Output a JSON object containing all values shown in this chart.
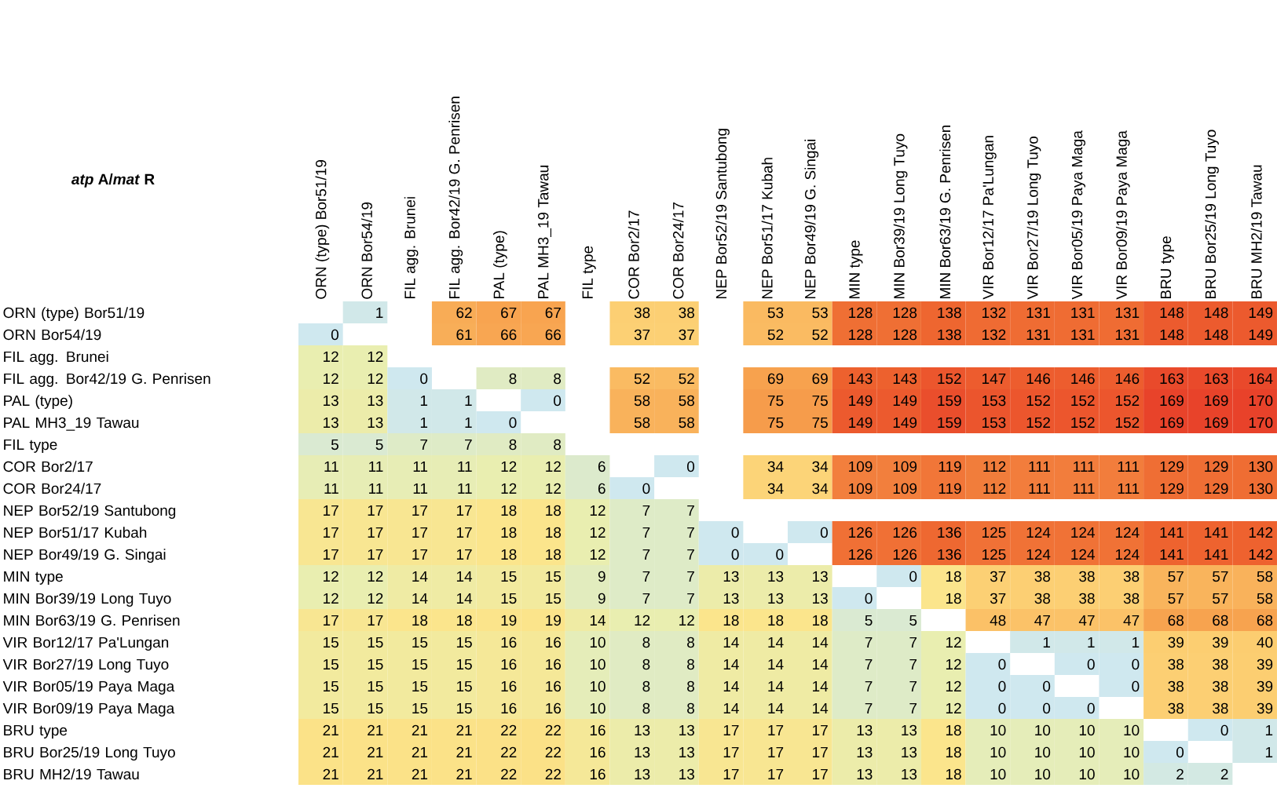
{
  "chart_data": {
    "type": "heatmap",
    "title": "*atp* A/*mat* R",
    "data_labels": true,
    "categories": [
      "ORN (type) Bor51/19",
      "ORN Bor54/19",
      "FIL agg. Brunei",
      "FIL agg. Bor42/19 G. Penrisen",
      "PAL (type)",
      "PAL MH3_19 Tawau",
      "FIL type",
      "COR Bor2/17",
      "COR Bor24/17",
      "NEP Bor52/19 Santubong",
      "NEP Bor51/17 Kubah",
      "NEP Bor49/19 G. Singai",
      "MIN type",
      "MIN Bor39/19 Long Tuyo",
      "MIN Bor63/19 G. Penrisen",
      "VIR Bor12/17 Pa'Lungan",
      "VIR Bor27/19 Long Tuyo",
      "VIR Bor05/19 Paya Maga",
      "VIR Bor09/19 Paya Maga",
      "BRU type",
      "BRU Bor25/19 Long Tuyo",
      "BRU MH2/19 Tawau"
    ],
    "y_categories": [
      "ORN (type) Bor51/19",
      "ORN Bor54/19",
      "FIL agg. Brunei",
      "FIL agg. Bor42/19 G. Penrisen",
      "PAL (type)",
      "PAL MH3_19 Tawau",
      "FIL type",
      "COR Bor2/17",
      "COR Bor24/17",
      "NEP Bor52/19 Santubong",
      "NEP Bor51/17 Kubah",
      "NEP Bor49/19 G. Singai",
      "MIN type",
      "MIN Bor39/19 Long Tuyo",
      "MIN Bor63/19 G. Penrisen",
      "VIR Bor12/17 Pa'Lungan",
      "VIR Bor27/19 Long Tuyo",
      "VIR Bor05/19 Paya Maga",
      "VIR Bor09/19 Paya Maga",
      "BRU type",
      "BRU Bor25/19 Long Tuyo",
      "BRU MH2/19 Tawau"
    ],
    "cells": [
      [
        null,
        1,
        null,
        62,
        67,
        67,
        null,
        38,
        38,
        null,
        53,
        53,
        128,
        128,
        138,
        132,
        131,
        131,
        131,
        148,
        148,
        149
      ],
      [
        0,
        null,
        null,
        61,
        66,
        66,
        null,
        37,
        37,
        null,
        52,
        52,
        128,
        128,
        138,
        132,
        131,
        131,
        131,
        148,
        148,
        149
      ],
      [
        12,
        12,
        null,
        null,
        null,
        null,
        null,
        null,
        null,
        null,
        null,
        null,
        null,
        null,
        null,
        null,
        null,
        null,
        null,
        null,
        null,
        null
      ],
      [
        12,
        12,
        0,
        null,
        8,
        8,
        null,
        52,
        52,
        null,
        69,
        69,
        143,
        143,
        152,
        147,
        146,
        146,
        146,
        163,
        163,
        164
      ],
      [
        13,
        13,
        1,
        1,
        null,
        0,
        null,
        58,
        58,
        null,
        75,
        75,
        149,
        149,
        159,
        153,
        152,
        152,
        152,
        169,
        169,
        170
      ],
      [
        13,
        13,
        1,
        1,
        0,
        null,
        null,
        58,
        58,
        null,
        75,
        75,
        149,
        149,
        159,
        153,
        152,
        152,
        152,
        169,
        169,
        170
      ],
      [
        5,
        5,
        7,
        7,
        8,
        8,
        null,
        null,
        null,
        null,
        null,
        null,
        null,
        null,
        null,
        null,
        null,
        null,
        null,
        null,
        null,
        null
      ],
      [
        11,
        11,
        11,
        11,
        12,
        12,
        6,
        null,
        0,
        null,
        34,
        34,
        109,
        109,
        119,
        112,
        111,
        111,
        111,
        129,
        129,
        130
      ],
      [
        11,
        11,
        11,
        11,
        12,
        12,
        6,
        0,
        null,
        null,
        34,
        34,
        109,
        109,
        119,
        112,
        111,
        111,
        111,
        129,
        129,
        130
      ],
      [
        17,
        17,
        17,
        17,
        18,
        18,
        12,
        7,
        7,
        null,
        null,
        null,
        null,
        null,
        null,
        null,
        null,
        null,
        null,
        null,
        null,
        null
      ],
      [
        17,
        17,
        17,
        17,
        18,
        18,
        12,
        7,
        7,
        0,
        null,
        0,
        126,
        126,
        136,
        125,
        124,
        124,
        124,
        141,
        141,
        142
      ],
      [
        17,
        17,
        17,
        17,
        18,
        18,
        12,
        7,
        7,
        0,
        0,
        null,
        126,
        126,
        136,
        125,
        124,
        124,
        124,
        141,
        141,
        142
      ],
      [
        12,
        12,
        14,
        14,
        15,
        15,
        9,
        7,
        7,
        13,
        13,
        13,
        null,
        0,
        18,
        37,
        38,
        38,
        38,
        57,
        57,
        58
      ],
      [
        12,
        12,
        14,
        14,
        15,
        15,
        9,
        7,
        7,
        13,
        13,
        13,
        0,
        null,
        18,
        37,
        38,
        38,
        38,
        57,
        57,
        58
      ],
      [
        17,
        17,
        18,
        18,
        19,
        19,
        14,
        12,
        12,
        18,
        18,
        18,
        5,
        5,
        null,
        48,
        47,
        47,
        47,
        68,
        68,
        68
      ],
      [
        15,
        15,
        15,
        15,
        16,
        16,
        10,
        8,
        8,
        14,
        14,
        14,
        7,
        7,
        12,
        null,
        1,
        1,
        1,
        39,
        39,
        40
      ],
      [
        15,
        15,
        15,
        15,
        16,
        16,
        10,
        8,
        8,
        14,
        14,
        14,
        7,
        7,
        12,
        0,
        null,
        0,
        0,
        38,
        38,
        39
      ],
      [
        15,
        15,
        15,
        15,
        16,
        16,
        10,
        8,
        8,
        14,
        14,
        14,
        7,
        7,
        12,
        0,
        0,
        null,
        0,
        38,
        38,
        39
      ],
      [
        15,
        15,
        15,
        15,
        16,
        16,
        10,
        8,
        8,
        14,
        14,
        14,
        7,
        7,
        12,
        0,
        0,
        0,
        null,
        38,
        38,
        39
      ],
      [
        21,
        21,
        21,
        21,
        22,
        22,
        16,
        13,
        13,
        17,
        17,
        17,
        13,
        13,
        18,
        10,
        10,
        10,
        10,
        null,
        0,
        1
      ],
      [
        21,
        21,
        21,
        21,
        22,
        22,
        16,
        13,
        13,
        17,
        17,
        17,
        13,
        13,
        18,
        10,
        10,
        10,
        10,
        0,
        null,
        1
      ],
      [
        21,
        21,
        21,
        21,
        22,
        22,
        16,
        13,
        13,
        17,
        17,
        17,
        13,
        13,
        18,
        10,
        10,
        10,
        10,
        2,
        2,
        null
      ]
    ]
  }
}
